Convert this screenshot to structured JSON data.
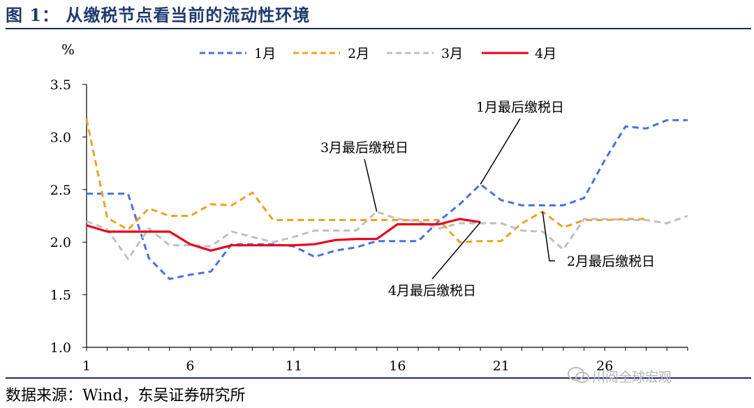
{
  "figure_title": "图 1：  从缴税节点看当前的流动性环境",
  "source_text": "数据来源：Wind，东吴证券研究所",
  "watermark_text": "川阅全球宏观",
  "colors": {
    "jan": "#4472e8",
    "feb": "#f0a020",
    "mar": "#bfbfbf",
    "apr": "#e8001a",
    "rule": "#1a2a5a"
  },
  "chart_data": {
    "type": "line",
    "ylabel": "%",
    "xlabel": "",
    "ylim": [
      1.0,
      3.5
    ],
    "xlim": [
      1,
      30
    ],
    "yticks": [
      "1.0",
      "1.5",
      "2.0",
      "2.5",
      "3.0",
      "3.5"
    ],
    "xticks": [
      "1",
      "6",
      "11",
      "16",
      "21",
      "26"
    ],
    "legend_position": "top",
    "grid": false,
    "series": [
      {
        "name": "1月",
        "style": "dashed",
        "x": [
          1,
          2,
          3,
          4,
          5,
          6,
          7,
          8,
          9,
          10,
          11,
          12,
          13,
          14,
          15,
          16,
          17,
          18,
          19,
          20,
          21,
          22,
          23,
          24,
          25,
          26,
          27,
          28,
          29,
          30
        ],
        "values": [
          2.46,
          2.46,
          2.46,
          1.85,
          1.65,
          1.69,
          1.72,
          1.98,
          1.98,
          1.98,
          1.96,
          1.86,
          1.92,
          1.95,
          2.01,
          2.01,
          2.01,
          2.2,
          2.36,
          2.55,
          2.4,
          2.35,
          2.35,
          2.35,
          2.42,
          2.78,
          3.1,
          3.08,
          3.16,
          3.16
        ]
      },
      {
        "name": "2月",
        "style": "dashed",
        "x": [
          1,
          2,
          3,
          4,
          5,
          6,
          7,
          8,
          9,
          10,
          11,
          12,
          13,
          14,
          15,
          16,
          17,
          18,
          19,
          20,
          21,
          22,
          23,
          24,
          25,
          26,
          27,
          28
        ],
        "values": [
          3.17,
          2.23,
          2.12,
          2.32,
          2.25,
          2.25,
          2.36,
          2.35,
          2.47,
          2.21,
          2.21,
          2.21,
          2.21,
          2.21,
          2.21,
          2.21,
          2.21,
          2.21,
          2.0,
          2.01,
          2.01,
          2.18,
          2.29,
          2.14,
          2.21,
          2.21,
          2.22,
          2.22
        ]
      },
      {
        "name": "3月",
        "style": "dashed",
        "x": [
          1,
          2,
          3,
          4,
          5,
          6,
          7,
          8,
          9,
          10,
          11,
          12,
          13,
          14,
          15,
          16,
          17,
          18,
          19,
          20,
          21,
          22,
          23,
          24,
          25,
          26,
          27,
          28,
          29,
          30
        ],
        "values": [
          2.2,
          2.12,
          1.84,
          2.13,
          1.97,
          1.97,
          1.96,
          2.1,
          2.05,
          2.0,
          2.05,
          2.11,
          2.11,
          2.11,
          2.29,
          2.22,
          2.2,
          2.13,
          2.18,
          2.18,
          2.18,
          2.11,
          2.1,
          1.93,
          2.22,
          2.22,
          2.21,
          2.21,
          2.18,
          2.25
        ]
      },
      {
        "name": "4月",
        "style": "solid",
        "x": [
          1,
          2,
          3,
          4,
          5,
          6,
          7,
          8,
          9,
          10,
          11,
          12,
          13,
          14,
          15,
          16,
          17,
          18,
          19,
          20
        ],
        "values": [
          2.16,
          2.1,
          2.1,
          2.1,
          2.1,
          1.98,
          1.92,
          1.97,
          1.97,
          1.97,
          1.97,
          1.98,
          2.02,
          2.03,
          2.03,
          2.17,
          2.17,
          2.17,
          2.22,
          2.19
        ]
      }
    ],
    "annotations": [
      {
        "label": "1月最后缴税日",
        "series": "1月",
        "x": 20,
        "y": 2.55
      },
      {
        "label": "3月最后缴税日",
        "series": "3月",
        "x": 15,
        "y": 2.29
      },
      {
        "label": "2月最后缴税日",
        "series": "2月",
        "x": 23,
        "y": 2.29
      },
      {
        "label": "4月最后缴税日",
        "series": "4月",
        "x": 20,
        "y": 2.19
      }
    ]
  }
}
